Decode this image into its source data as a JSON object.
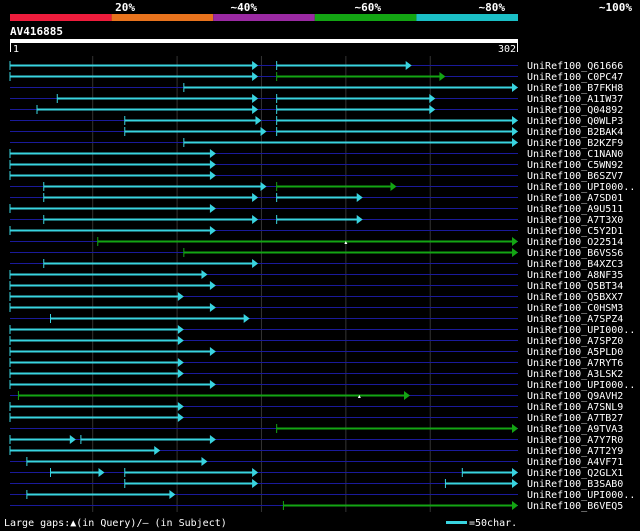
{
  "scale": {
    "labels": [
      "20%",
      "~40%",
      "~60%",
      "~80%",
      "~100%"
    ],
    "colors": [
      "#ee1c3c",
      "#e8731d",
      "#9b2aa3",
      "#13a513",
      "#1bbfc6"
    ]
  },
  "query": {
    "name": "AV416885",
    "start_label": "1",
    "end_label": "302",
    "length": 302
  },
  "colors": {
    "hit": "#39d4e0",
    "hit_low": "#13a513",
    "row_line": "#1a1a9a",
    "grid": "#333333"
  },
  "rows": [
    {
      "name": "UniRef100_Q61666",
      "segments": [
        [
          1,
          148,
          "c"
        ],
        [
          159,
          239,
          "c"
        ]
      ]
    },
    {
      "name": "UniRef100_C0PC47",
      "segments": [
        [
          1,
          148,
          "c"
        ],
        [
          159,
          259,
          "g"
        ]
      ]
    },
    {
      "name": "UniRef100_B7FKH8",
      "segments": [
        [
          104,
          302,
          "c"
        ]
      ]
    },
    {
      "name": "UniRef100_A1IW37",
      "segments": [
        [
          29,
          148,
          "c"
        ],
        [
          159,
          253,
          "c"
        ]
      ]
    },
    {
      "name": "UniRef100_Q04892",
      "segments": [
        [
          17,
          148,
          "c"
        ],
        [
          159,
          253,
          "c"
        ]
      ]
    },
    {
      "name": "UniRef100_Q0WLP3",
      "segments": [
        [
          69,
          150,
          "c"
        ],
        [
          159,
          302,
          "c"
        ]
      ]
    },
    {
      "name": "UniRef100_B2BAK4",
      "segments": [
        [
          69,
          153,
          "c"
        ],
        [
          159,
          302,
          "c"
        ]
      ]
    },
    {
      "name": "UniRef100_B2KZF9",
      "segments": [
        [
          104,
          302,
          "c"
        ]
      ]
    },
    {
      "name": "UniRef100_C1NAN0",
      "segments": [
        [
          1,
          123,
          "c"
        ]
      ]
    },
    {
      "name": "UniRef100_C5WN92",
      "segments": [
        [
          1,
          123,
          "c"
        ]
      ]
    },
    {
      "name": "UniRef100_B6SZV7",
      "segments": [
        [
          1,
          123,
          "c"
        ]
      ]
    },
    {
      "name": "UniRef100_UPI000..",
      "segments": [
        [
          21,
          153,
          "c"
        ],
        [
          159,
          230,
          "g"
        ]
      ]
    },
    {
      "name": "UniRef100_A7SD01",
      "segments": [
        [
          21,
          148,
          "c"
        ],
        [
          159,
          210,
          "c"
        ]
      ]
    },
    {
      "name": "UniRef100_A9U511",
      "segments": [
        [
          1,
          123,
          "c"
        ]
      ]
    },
    {
      "name": "UniRef100_A7T3X0",
      "segments": [
        [
          21,
          148,
          "c"
        ],
        [
          159,
          210,
          "c"
        ]
      ]
    },
    {
      "name": "UniRef100_C5Y2D1",
      "segments": [
        [
          1,
          123,
          "c"
        ]
      ]
    },
    {
      "name": "UniRef100_O22514",
      "segments": [
        [
          53,
          302,
          "g"
        ]
      ]
    },
    {
      "name": "UniRef100_B6VSS6",
      "segments": [
        [
          104,
          302,
          "g"
        ]
      ]
    },
    {
      "name": "UniRef100_B4XZC3",
      "segments": [
        [
          21,
          148,
          "c"
        ]
      ]
    },
    {
      "name": "UniRef100_A8NF35",
      "segments": [
        [
          1,
          118,
          "c"
        ]
      ]
    },
    {
      "name": "UniRef100_Q5BT34",
      "segments": [
        [
          1,
          123,
          "c"
        ]
      ]
    },
    {
      "name": "UniRef100_Q5BXX7",
      "segments": [
        [
          1,
          104,
          "c"
        ]
      ]
    },
    {
      "name": "UniRef100_C0HSM3",
      "segments": [
        [
          1,
          123,
          "c"
        ]
      ]
    },
    {
      "name": "UniRef100_A7SPZ4",
      "segments": [
        [
          25,
          143,
          "c"
        ]
      ]
    },
    {
      "name": "UniRef100_UPI000..",
      "segments": [
        [
          1,
          104,
          "c"
        ]
      ]
    },
    {
      "name": "UniRef100_A7SPZ0",
      "segments": [
        [
          1,
          104,
          "c"
        ]
      ]
    },
    {
      "name": "UniRef100_A5PLD0",
      "segments": [
        [
          1,
          123,
          "c"
        ]
      ]
    },
    {
      "name": "UniRef100_A7RYT6",
      "segments": [
        [
          1,
          104,
          "c"
        ]
      ]
    },
    {
      "name": "UniRef100_A3LSK2",
      "segments": [
        [
          1,
          104,
          "c"
        ]
      ]
    },
    {
      "name": "UniRef100_UPI000..",
      "segments": [
        [
          1,
          123,
          "c"
        ]
      ]
    },
    {
      "name": "UniRef100_Q9AVH2",
      "segments": [
        [
          6,
          238,
          "g"
        ]
      ]
    },
    {
      "name": "UniRef100_A7SNL9",
      "segments": [
        [
          1,
          104,
          "c"
        ]
      ]
    },
    {
      "name": "UniRef100_A7TB27",
      "segments": [
        [
          1,
          104,
          "c"
        ]
      ]
    },
    {
      "name": "UniRef100_A9TVA3",
      "segments": [
        [
          159,
          302,
          "g"
        ]
      ]
    },
    {
      "name": "UniRef100_A7Y7R0",
      "segments": [
        [
          1,
          40,
          "c"
        ],
        [
          43,
          123,
          "c"
        ]
      ]
    },
    {
      "name": "UniRef100_A7T2Y9",
      "segments": [
        [
          1,
          90,
          "c"
        ]
      ]
    },
    {
      "name": "UniRef100_A4VF71",
      "segments": [
        [
          11,
          118,
          "c"
        ]
      ]
    },
    {
      "name": "UniRef100_Q2GLX1",
      "segments": [
        [
          25,
          57,
          "c"
        ],
        [
          69,
          148,
          "c"
        ],
        [
          269,
          302,
          "c"
        ]
      ]
    },
    {
      "name": "UniRef100_B3SAB0",
      "segments": [
        [
          69,
          148,
          "c"
        ],
        [
          259,
          302,
          "c"
        ]
      ]
    },
    {
      "name": "UniRef100_UPI000..",
      "segments": [
        [
          11,
          99,
          "c"
        ]
      ]
    },
    {
      "name": "UniRef100_B6VEQ5",
      "segments": [
        [
          163,
          302,
          "g"
        ]
      ]
    }
  ],
  "gap_marks": [
    [
      16,
      200
    ],
    [
      30,
      208
    ]
  ],
  "footer": {
    "large_gaps": "Large gaps:▲(in Query)/— (in Subject)",
    "scale_note": "=50char."
  }
}
